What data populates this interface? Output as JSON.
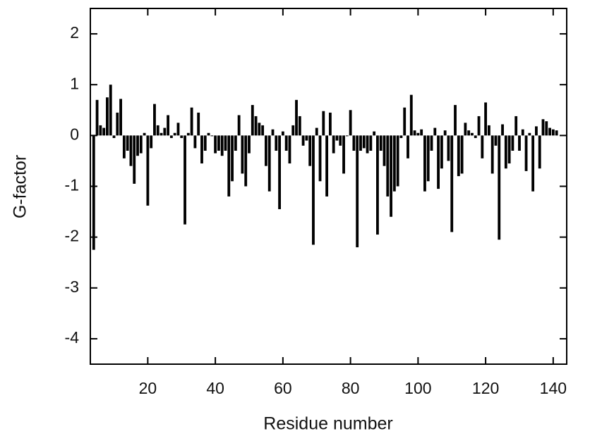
{
  "chart_data": {
    "type": "bar",
    "xlabel": "Residue number",
    "ylabel": "G-factor",
    "x": [
      4,
      5,
      6,
      7,
      8,
      9,
      10,
      11,
      12,
      13,
      14,
      15,
      16,
      17,
      18,
      19,
      20,
      21,
      22,
      23,
      24,
      25,
      26,
      27,
      28,
      29,
      30,
      31,
      32,
      33,
      34,
      35,
      36,
      37,
      38,
      39,
      40,
      41,
      42,
      43,
      44,
      45,
      46,
      47,
      48,
      49,
      50,
      51,
      52,
      53,
      54,
      55,
      56,
      57,
      58,
      59,
      60,
      61,
      62,
      63,
      64,
      65,
      66,
      67,
      68,
      69,
      70,
      71,
      72,
      73,
      74,
      75,
      76,
      77,
      78,
      79,
      80,
      81,
      82,
      83,
      84,
      85,
      86,
      87,
      88,
      89,
      90,
      91,
      92,
      93,
      94,
      95,
      96,
      97,
      98,
      99,
      100,
      101,
      102,
      103,
      104,
      105,
      106,
      107,
      108,
      109,
      110,
      111,
      112,
      113,
      114,
      115,
      116,
      117,
      118,
      119,
      120,
      121,
      122,
      123,
      124,
      125,
      126,
      127,
      128,
      129,
      130,
      131,
      132,
      133,
      134,
      135,
      136,
      137,
      138,
      139,
      140,
      141
    ],
    "values": [
      -2.25,
      0.7,
      0.2,
      0.15,
      0.75,
      1.0,
      -0.05,
      0.45,
      0.72,
      -0.45,
      -0.3,
      -0.6,
      -0.95,
      -0.4,
      -0.35,
      0.05,
      -1.38,
      -0.25,
      0.62,
      0.2,
      0.05,
      0.15,
      0.4,
      -0.05,
      0.05,
      0.25,
      -0.05,
      -1.75,
      0.05,
      0.55,
      -0.25,
      0.45,
      -0.55,
      -0.3,
      0.05,
      0.0,
      -0.35,
      -0.3,
      -0.4,
      -0.3,
      -1.2,
      -0.9,
      -0.3,
      0.4,
      -0.75,
      -1.0,
      -0.35,
      0.6,
      0.38,
      0.25,
      0.2,
      -0.6,
      -1.1,
      0.12,
      -0.3,
      -1.45,
      0.08,
      -0.3,
      -0.55,
      0.2,
      0.7,
      0.38,
      -0.2,
      -0.1,
      -0.6,
      -2.15,
      0.15,
      -0.9,
      0.48,
      -1.2,
      0.45,
      -0.35,
      -0.1,
      -0.2,
      -0.75,
      0.0,
      0.5,
      -0.3,
      -2.2,
      -0.3,
      -0.25,
      -0.35,
      -0.3,
      0.08,
      -1.95,
      -0.3,
      -0.6,
      -1.2,
      -1.6,
      -1.1,
      -1.0,
      -0.05,
      0.55,
      -0.45,
      0.8,
      0.1,
      0.05,
      0.12,
      -1.1,
      -0.9,
      -0.3,
      0.15,
      -1.05,
      -0.65,
      0.1,
      -0.5,
      -1.9,
      0.6,
      -0.8,
      -0.75,
      0.25,
      0.1,
      0.05,
      -0.05,
      0.38,
      -0.45,
      0.65,
      0.2,
      -0.75,
      -0.2,
      -2.05,
      0.22,
      -0.65,
      -0.55,
      -0.3,
      0.38,
      -0.3,
      0.12,
      -0.7,
      0.05,
      -1.1,
      0.18,
      -0.65,
      0.32,
      0.28,
      0.15,
      0.12,
      0.1
    ],
    "color": "#000000",
    "xlim": [
      3,
      144
    ],
    "xticks": [
      20,
      40,
      60,
      80,
      100,
      120,
      140
    ],
    "ylim": [
      -4.5,
      2.5
    ],
    "yticks": [
      -4,
      -3,
      -2,
      -1,
      0,
      1,
      2
    ]
  }
}
